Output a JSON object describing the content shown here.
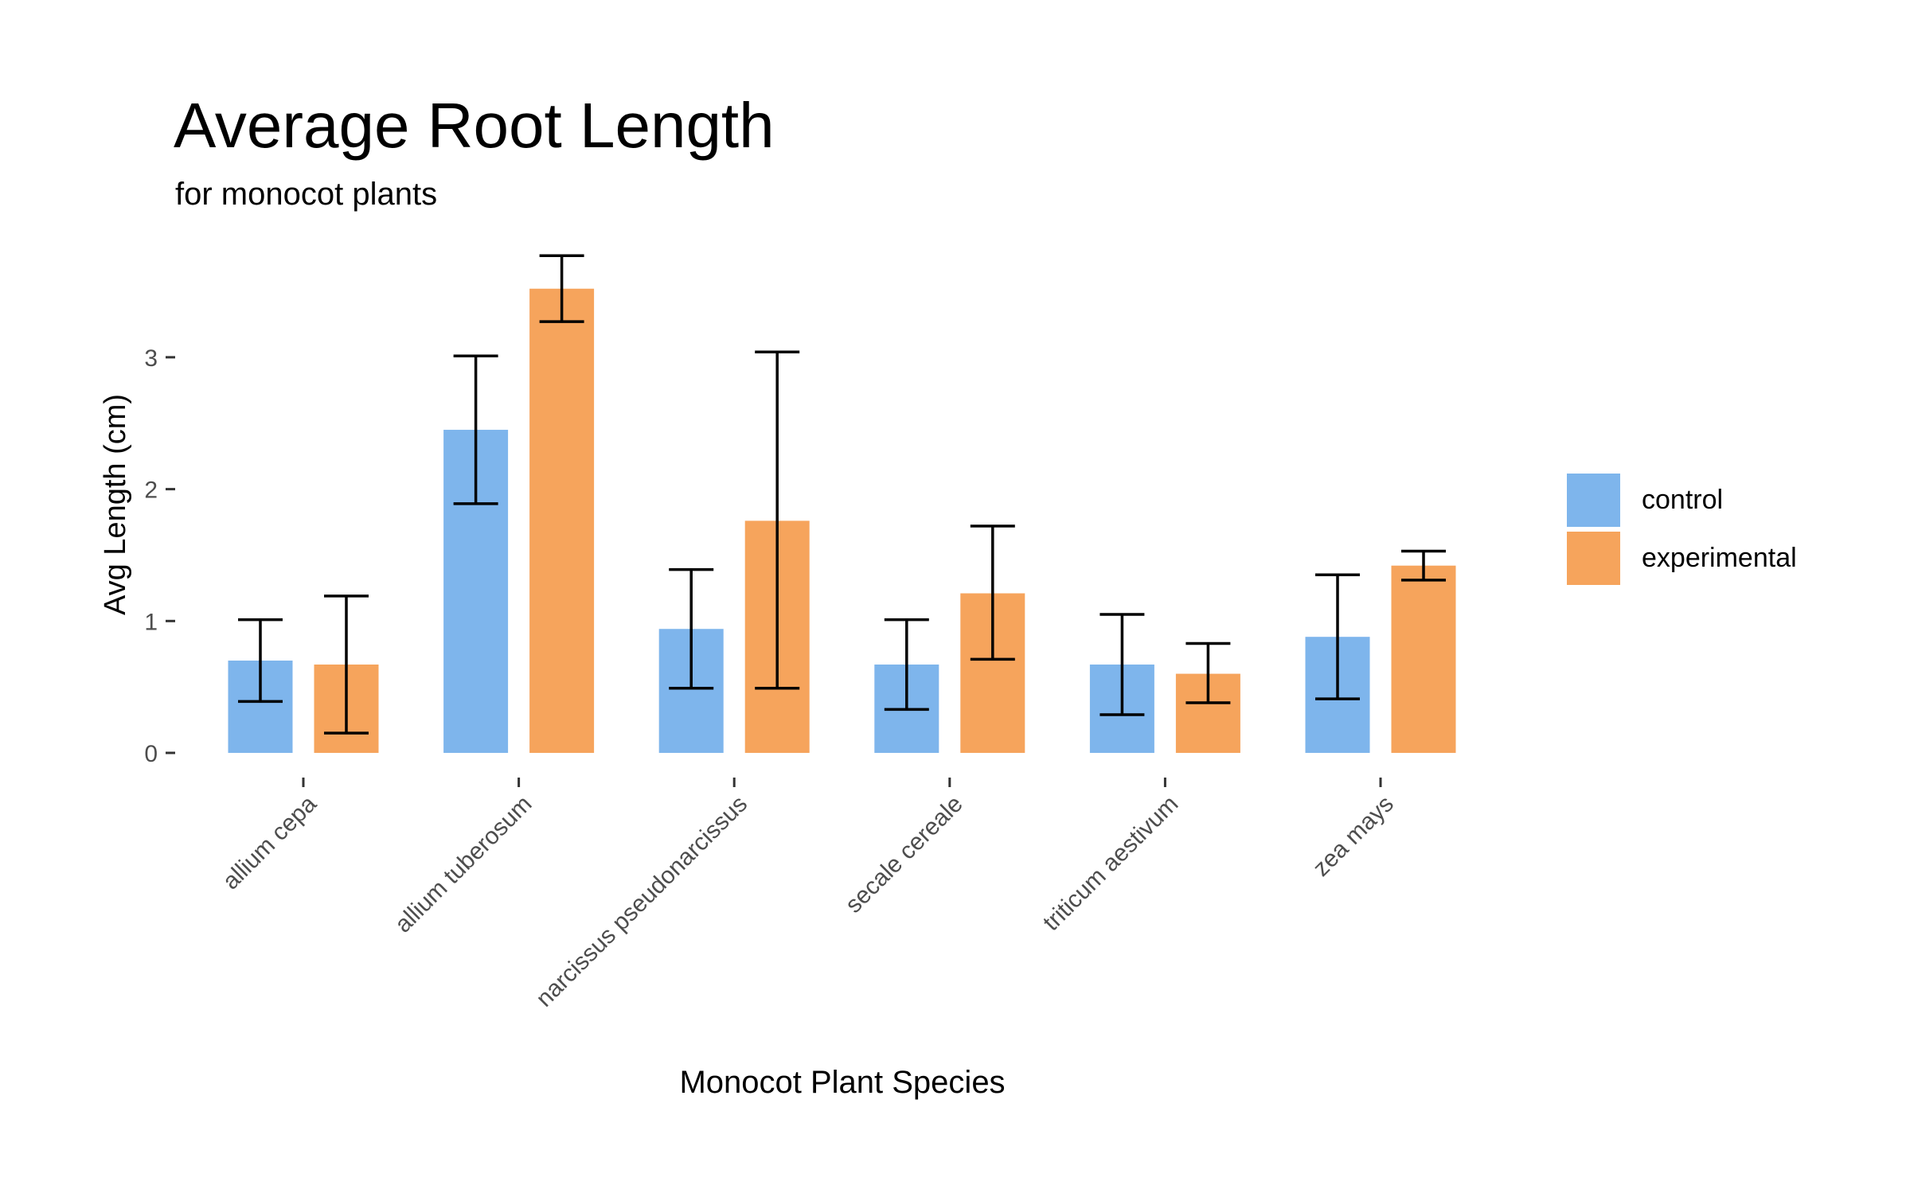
{
  "chart_data": {
    "type": "bar",
    "title": "Average Root Length",
    "subtitle": "for monocot plants",
    "xlabel": "Monocot Plant Species",
    "ylabel": "Avg Length (cm)",
    "categories": [
      "allium cepa",
      "allium tuberosum",
      "narcissus pseudonarcissus",
      "secale cereale",
      "triticum aestivum",
      "zea mays"
    ],
    "yticks": [
      "0",
      "1",
      "2",
      "3"
    ],
    "ylim": [
      0,
      3.8
    ],
    "grid": false,
    "legend_position": "right",
    "series": [
      {
        "name": "control",
        "color": "#7EB5EC",
        "values": [
          0.7,
          2.45,
          0.94,
          0.67,
          0.67,
          0.88
        ],
        "error_low": [
          0.39,
          1.89,
          0.49,
          0.33,
          0.29,
          0.41
        ],
        "error_high": [
          1.01,
          3.01,
          1.39,
          1.01,
          1.05,
          1.35
        ]
      },
      {
        "name": "experimental",
        "color": "#F6A45C",
        "values": [
          0.67,
          3.52,
          1.76,
          1.21,
          0.6,
          1.42
        ],
        "error_low": [
          0.15,
          3.27,
          0.49,
          0.71,
          0.38,
          1.31
        ],
        "error_high": [
          1.19,
          3.77,
          3.04,
          1.72,
          0.83,
          1.53
        ]
      }
    ]
  }
}
